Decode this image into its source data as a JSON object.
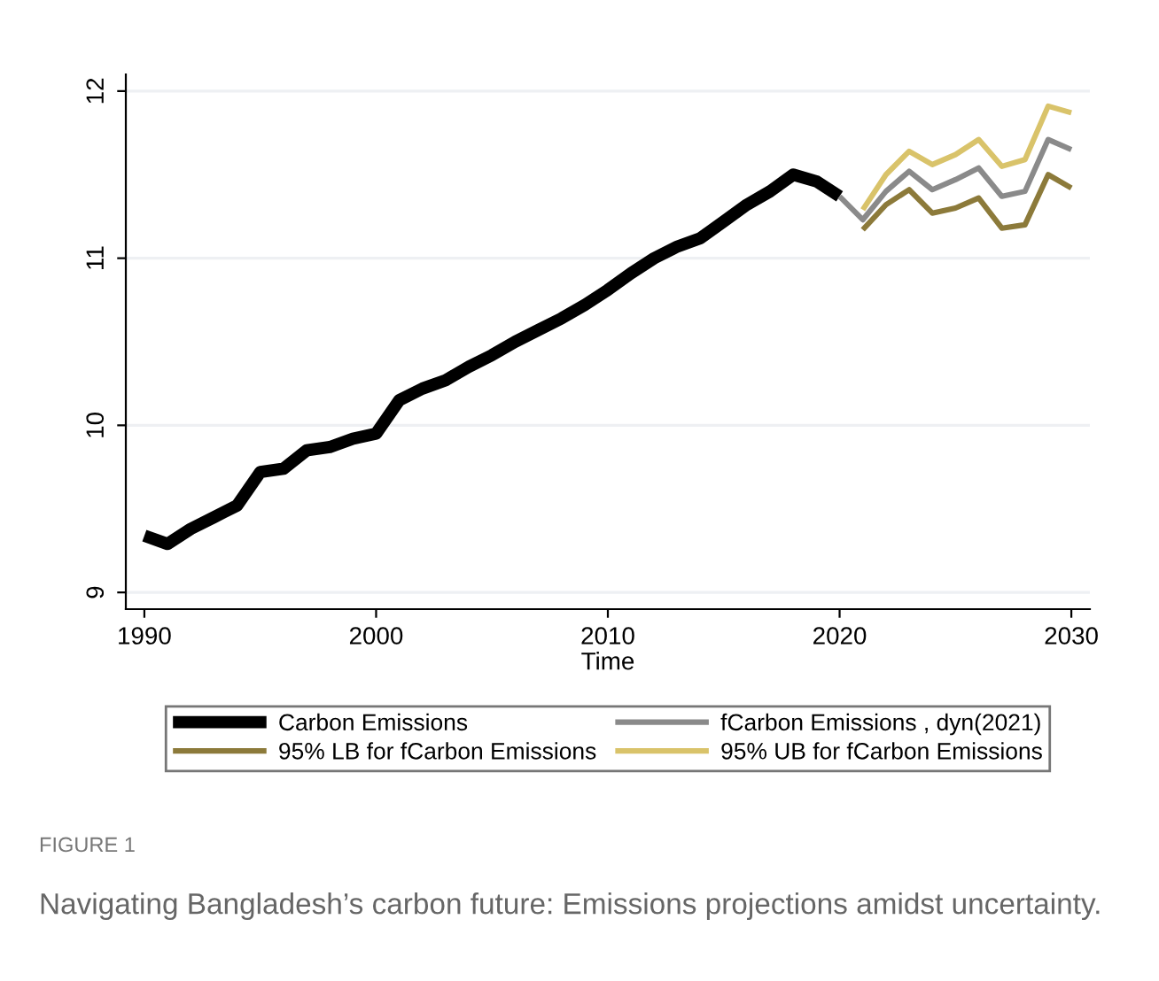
{
  "chart_data": {
    "type": "line",
    "xlabel": "Time",
    "x": [
      1990,
      1991,
      1992,
      1993,
      1994,
      1995,
      1996,
      1997,
      1998,
      1999,
      2000,
      2001,
      2002,
      2003,
      2004,
      2005,
      2006,
      2007,
      2008,
      2009,
      2010,
      2011,
      2012,
      2013,
      2014,
      2015,
      2016,
      2017,
      2018,
      2019,
      2020
    ],
    "series": [
      {
        "name": "Carbon Emissions",
        "color": "#000000",
        "values": [
          9.34,
          9.29,
          9.38,
          9.45,
          9.52,
          9.72,
          9.74,
          9.85,
          9.87,
          9.92,
          9.95,
          10.15,
          10.22,
          10.27,
          10.35,
          10.42,
          10.5,
          10.57,
          10.64,
          10.72,
          10.81,
          10.91,
          11.0,
          11.07,
          11.12,
          11.22,
          11.32,
          11.4,
          11.5,
          11.46,
          11.37
        ]
      },
      {
        "name": "fCarbon Emissions , dyn(2021)",
        "color": "#8a8a8a",
        "x": [
          2020,
          2021,
          2022,
          2023,
          2024,
          2025,
          2026,
          2027,
          2028,
          2029,
          2030
        ],
        "values": [
          11.37,
          11.23,
          11.4,
          11.52,
          11.41,
          11.47,
          11.54,
          11.37,
          11.4,
          11.71,
          11.65
        ]
      },
      {
        "name": "95% LB for fCarbon Emissions",
        "color": "#8c7a3a",
        "x": [
          2021,
          2022,
          2023,
          2024,
          2025,
          2026,
          2027,
          2028,
          2029,
          2030
        ],
        "values": [
          11.17,
          11.32,
          11.41,
          11.27,
          11.3,
          11.36,
          11.18,
          11.2,
          11.5,
          11.42
        ]
      },
      {
        "name": "95% UB for fCarbon Emissions",
        "color": "#d9c36a",
        "x": [
          2021,
          2022,
          2023,
          2024,
          2025,
          2026,
          2027,
          2028,
          2029,
          2030
        ],
        "values": [
          11.29,
          11.5,
          11.64,
          11.56,
          11.62,
          11.71,
          11.55,
          11.59,
          11.91,
          11.87
        ]
      }
    ],
    "xlim": [
      1989.2,
      2030.8
    ],
    "xticks": [
      1990,
      2000,
      2010,
      2020,
      2030
    ],
    "ylim": [
      8.9,
      12.1
    ],
    "yticks": [
      9,
      10,
      11,
      12
    ],
    "grid": "y",
    "legend": "bottom",
    "line_style": "solid",
    "annotations": [
      "FIGURE 1",
      "Navigating Bangladesh’s carbon future: Emissions projections amidst uncertainty."
    ]
  }
}
